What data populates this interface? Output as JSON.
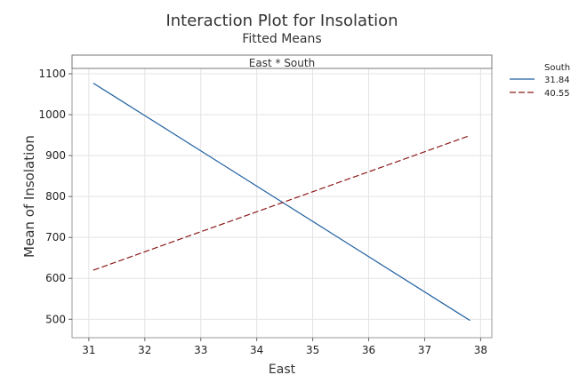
{
  "chart_data": {
    "type": "line",
    "title": "Interaction Plot for Insolation",
    "subtitle": "Fitted Means",
    "panel_label": "East * South",
    "xlabel": "East",
    "ylabel": "Mean of Insolation",
    "xlim": [
      30.7,
      38.2
    ],
    "ylim": [
      455,
      1113
    ],
    "xticks": [
      31,
      32,
      33,
      34,
      35,
      36,
      37,
      38
    ],
    "yticks": [
      500,
      600,
      700,
      800,
      900,
      1000,
      1100
    ],
    "grid": true,
    "legend_title": "South",
    "legend_position": "top-right",
    "series": [
      {
        "name": "31.84",
        "color": "#1f5fa0",
        "dash": "solid",
        "x": [
          31.08,
          37.81
        ],
        "y": [
          1077,
          497
        ]
      },
      {
        "name": "40.55",
        "color": "#8b1a1a",
        "dash": "dashed",
        "x": [
          31.08,
          37.81
        ],
        "y": [
          620,
          949
        ]
      }
    ]
  }
}
